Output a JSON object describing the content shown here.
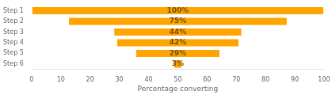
{
  "chart_data": {
    "type": "funnel",
    "orientation": "horizontal",
    "xlabel": "Percentage converting",
    "categories": [
      "Step 1",
      "Step 2",
      "Step 3",
      "Step 4",
      "Step 5",
      "Step 6"
    ],
    "values": [
      100,
      75,
      44,
      42,
      29,
      3
    ],
    "value_labels": [
      "100%",
      "75%",
      "44%",
      "42%",
      "29%",
      "3%"
    ],
    "data_labels": true,
    "color": "#FFA500",
    "xlim": [
      0,
      100
    ],
    "xticks": [
      0,
      10,
      20,
      30,
      40,
      50,
      60,
      70,
      80,
      90,
      100
    ],
    "grid": false
  }
}
